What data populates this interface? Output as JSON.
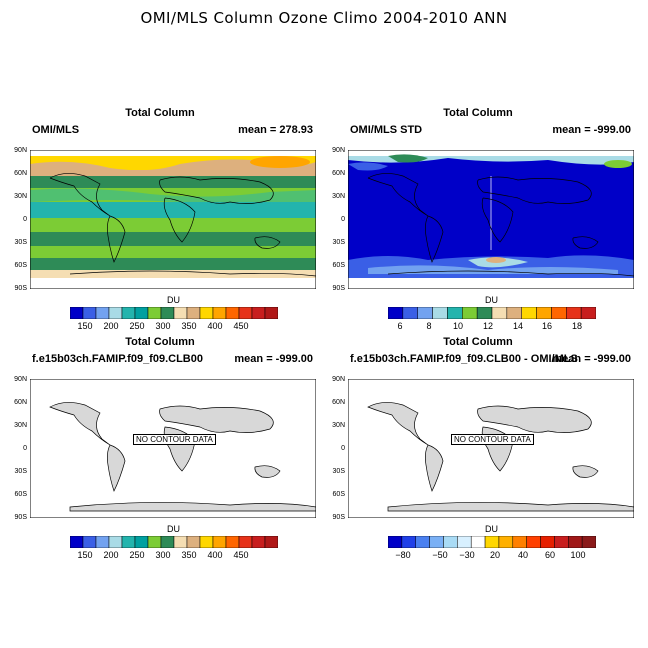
{
  "title": "OMI/MLS Column Ozone Climo 2004-2010 ANN",
  "latitude_labels": [
    "90N",
    "60N",
    "30N",
    "0",
    "30S",
    "60S",
    "90S"
  ],
  "colors": {
    "du_palette": [
      "#0000c8",
      "#3a5fe6",
      "#72a2f0",
      "#a9dbe6",
      "#23b4ad",
      "#00a0a0",
      "#7ccc35",
      "#2e8b57",
      "#f5deb3",
      "#ddb07e",
      "#ffd700",
      "#ffa500",
      "#ff6600",
      "#e63219",
      "#c81e1e",
      "#b01818"
    ],
    "std_palette": [
      "#0000c8",
      "#3a5fe6",
      "#72a2f0",
      "#a9dbe6",
      "#23b4ad",
      "#7ccc35",
      "#2e8b57",
      "#f5deb3",
      "#ddb07e",
      "#ffd700",
      "#ffa500",
      "#ff6600",
      "#e63219",
      "#c81e1e"
    ],
    "diff_palette": [
      "#0000c8",
      "#2040e8",
      "#4a80f0",
      "#7ab0f5",
      "#a9dbf5",
      "#d8f0ff",
      "#ffffff",
      "#ffd700",
      "#ffb000",
      "#ff8000",
      "#ff4000",
      "#e62000",
      "#c81e1e",
      "#a01818",
      "#8b1a1a"
    ],
    "land": "#d8d8d8"
  },
  "panels": [
    {
      "title": "Total Column",
      "left": "OMI/MLS",
      "right": "mean = 278.93",
      "cbar_label": "DU",
      "cbar_ticks": [
        "150",
        "200",
        "250",
        "300",
        "350",
        "400",
        "450"
      ],
      "no_contour": ""
    },
    {
      "title": "Total Column",
      "left": "OMI/MLS STD",
      "right": "mean = -999.00",
      "cbar_label": "DU",
      "cbar_ticks": [
        "6",
        "8",
        "10",
        "12",
        "14",
        "16",
        "18"
      ],
      "no_contour": ""
    },
    {
      "title": "Total Column",
      "left": "f.e15b03ch.FAMIP.f09_f09.CLB00",
      "right": "mean = -999.00",
      "cbar_label": "DU",
      "cbar_ticks": [
        "150",
        "200",
        "250",
        "300",
        "350",
        "400",
        "450"
      ],
      "no_contour": "NO CONTOUR DATA"
    },
    {
      "title": "Total Column",
      "left": "f.e15b03ch.FAMIP.f09_f09.CLB00 - OMI/MLS",
      "right": "mean = -999.00",
      "cbar_label": "DU",
      "cbar_ticks": [
        "−80",
        "−50",
        "−30",
        "20",
        "40",
        "60",
        "100"
      ],
      "no_contour": "NO CONTOUR DATA"
    }
  ]
}
